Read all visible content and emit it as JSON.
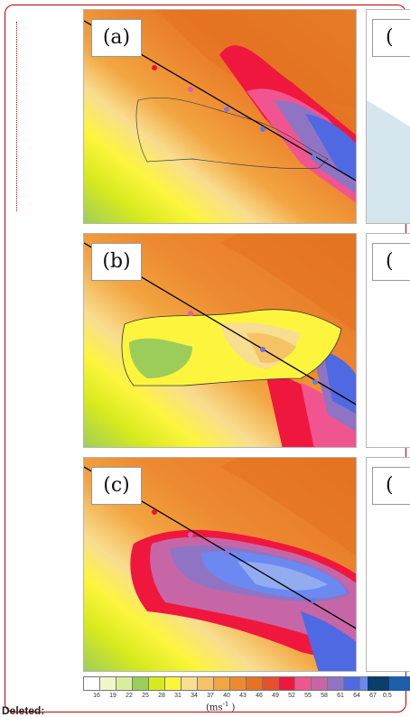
{
  "panels": [
    {
      "label": "(a)",
      "variant": "track"
    },
    {
      "label": "(b)",
      "variant": "island"
    },
    {
      "label": "(c)",
      "variant": "intense"
    }
  ],
  "side_panels": [
    {
      "label": "(",
      "fill": "#d6e6ef"
    },
    {
      "label": "(",
      "fill": "#ffffff"
    },
    {
      "label": "(",
      "fill": "#ffffff"
    }
  ],
  "legend": {
    "colors": [
      "#ffffff",
      "#f1f7c9",
      "#d8ee9a",
      "#9ccd5a",
      "#d7ea1e",
      "#fdf53d",
      "#f8de90",
      "#f5c366",
      "#f2a541",
      "#ed8a30",
      "#e57322",
      "#e6512a",
      "#f0173f",
      "#f05590",
      "#c766a6",
      "#8f74c4",
      "#4f69e2",
      "#6b89f0",
      "#93acf0",
      "#b9c8ef"
    ],
    "ticks": [
      "16",
      "19",
      "22",
      "25",
      "28",
      "31",
      "34",
      "37",
      "40",
      "43",
      "46",
      "49",
      "52",
      "55",
      "58",
      "61",
      "64",
      "67"
    ],
    "units": "(ms",
    "units_exp": "-1",
    "units_close": " )"
  },
  "side_legend": {
    "colors": [
      "#0c3e6a",
      "#1f5fa8"
    ],
    "tick": "0.5"
  },
  "track_colors": {
    "dots": [
      "#e8143a",
      "#e05cab",
      "#8b74d0",
      "#5e7ee6"
    ]
  },
  "footer": {
    "deleted_label": "Deleted:"
  }
}
